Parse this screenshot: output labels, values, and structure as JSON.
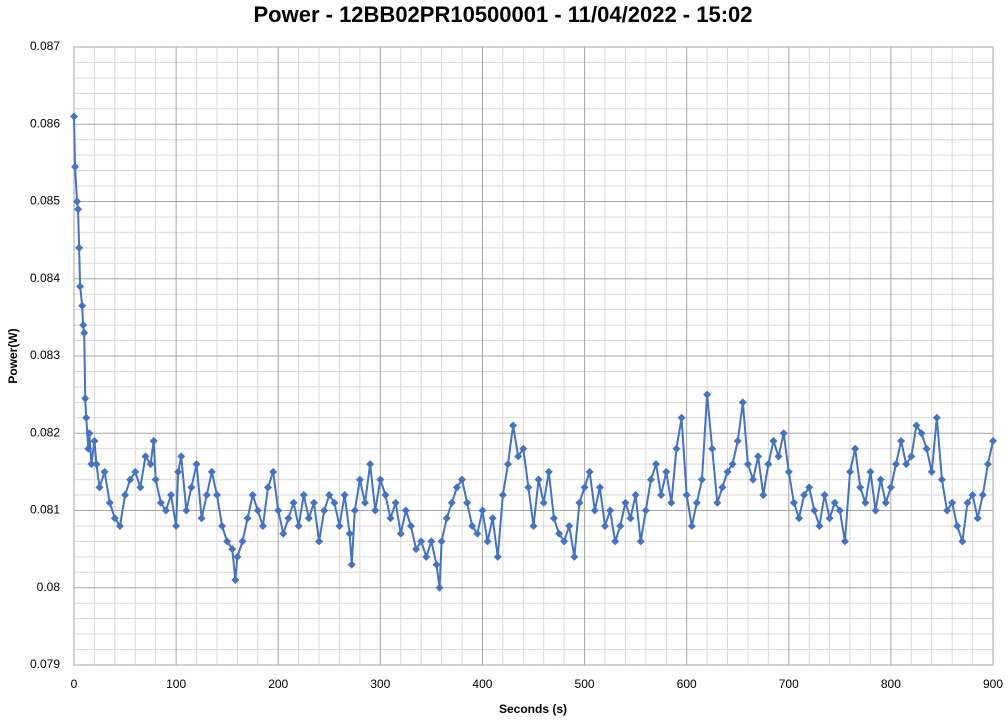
{
  "chart_data": {
    "type": "line",
    "title": "Power - 12BB02PR10500001 - 11/04/2022 - 15:02",
    "xlabel": "Seconds (s)",
    "ylabel": "Power(W)",
    "xlim": [
      0,
      900
    ],
    "xticks": [
      0,
      100,
      200,
      300,
      400,
      500,
      600,
      700,
      800,
      900
    ],
    "ylim": [
      0.079,
      0.087
    ],
    "yticks": [
      0.079,
      0.08,
      0.081,
      0.082,
      0.083,
      0.084,
      0.085,
      0.086,
      0.087
    ],
    "grid": true,
    "minor_grid": {
      "x": 5,
      "y": 5
    },
    "marker": "diamond",
    "x": [
      0,
      1,
      3,
      4,
      5,
      6,
      8,
      9,
      10,
      11,
      12,
      14,
      15,
      17,
      20,
      22,
      25,
      30,
      35,
      40,
      45,
      50,
      55,
      60,
      65,
      70,
      75,
      78,
      80,
      85,
      90,
      95,
      100,
      102,
      105,
      110,
      115,
      120,
      125,
      130,
      135,
      140,
      145,
      150,
      155,
      158,
      160,
      165,
      170,
      175,
      180,
      185,
      190,
      195,
      200,
      205,
      210,
      215,
      220,
      225,
      230,
      235,
      240,
      245,
      250,
      255,
      260,
      265,
      270,
      272,
      275,
      280,
      285,
      290,
      295,
      300,
      305,
      310,
      315,
      320,
      325,
      330,
      335,
      340,
      345,
      350,
      355,
      358,
      360,
      365,
      370,
      375,
      380,
      385,
      390,
      395,
      400,
      405,
      410,
      415,
      420,
      425,
      430,
      435,
      440,
      445,
      450,
      455,
      460,
      465,
      470,
      475,
      480,
      485,
      490,
      495,
      500,
      505,
      510,
      515,
      520,
      525,
      530,
      535,
      540,
      545,
      550,
      555,
      560,
      565,
      570,
      575,
      580,
      585,
      590,
      595,
      600,
      605,
      610,
      615,
      620,
      625,
      630,
      635,
      640,
      645,
      650,
      655,
      660,
      665,
      670,
      675,
      680,
      685,
      690,
      695,
      700,
      705,
      710,
      715,
      720,
      725,
      730,
      735,
      740,
      745,
      750,
      755,
      760,
      765,
      770,
      775,
      780,
      785,
      790,
      795,
      800,
      805,
      810,
      815,
      820,
      825,
      830,
      835,
      840,
      845,
      850,
      855,
      860,
      865,
      870,
      875,
      880,
      885,
      890,
      895,
      900
    ],
    "series": [
      {
        "name": "Power",
        "color": "#4472c4",
        "values": [
          0.0861,
          0.08545,
          0.085,
          0.0849,
          0.0844,
          0.0839,
          0.08365,
          0.0834,
          0.0833,
          0.08245,
          0.0822,
          0.0818,
          0.082,
          0.0816,
          0.0819,
          0.0816,
          0.0813,
          0.0815,
          0.0811,
          0.0809,
          0.0808,
          0.0812,
          0.0814,
          0.0815,
          0.0813,
          0.0817,
          0.0816,
          0.0819,
          0.0814,
          0.0811,
          0.081,
          0.0812,
          0.0808,
          0.0815,
          0.0817,
          0.081,
          0.0813,
          0.0816,
          0.0809,
          0.0812,
          0.0815,
          0.0812,
          0.0808,
          0.0806,
          0.0805,
          0.0801,
          0.0804,
          0.0806,
          0.0809,
          0.0812,
          0.081,
          0.0808,
          0.0813,
          0.0815,
          0.081,
          0.0807,
          0.0809,
          0.0811,
          0.0808,
          0.0812,
          0.0809,
          0.0811,
          0.0806,
          0.081,
          0.0812,
          0.0811,
          0.0808,
          0.0812,
          0.0807,
          0.0803,
          0.081,
          0.0814,
          0.0811,
          0.0816,
          0.081,
          0.0814,
          0.0812,
          0.0809,
          0.0811,
          0.0807,
          0.081,
          0.0808,
          0.0805,
          0.0806,
          0.0804,
          0.0806,
          0.0803,
          0.08,
          0.0806,
          0.0809,
          0.0811,
          0.0813,
          0.0814,
          0.0811,
          0.0808,
          0.0807,
          0.081,
          0.0806,
          0.0809,
          0.0804,
          0.0812,
          0.0816,
          0.0821,
          0.0817,
          0.0818,
          0.0813,
          0.0808,
          0.0814,
          0.0811,
          0.0815,
          0.0809,
          0.0807,
          0.0806,
          0.0808,
          0.0804,
          0.0811,
          0.0813,
          0.0815,
          0.081,
          0.0813,
          0.0808,
          0.081,
          0.0806,
          0.0808,
          0.0811,
          0.0809,
          0.0812,
          0.0806,
          0.081,
          0.0814,
          0.0816,
          0.0812,
          0.0815,
          0.0811,
          0.0818,
          0.0822,
          0.0812,
          0.0808,
          0.0811,
          0.0814,
          0.0825,
          0.0818,
          0.0811,
          0.0813,
          0.0815,
          0.0816,
          0.0819,
          0.0824,
          0.0816,
          0.0814,
          0.0817,
          0.0812,
          0.0816,
          0.0819,
          0.0817,
          0.082,
          0.0815,
          0.0811,
          0.0809,
          0.0812,
          0.0813,
          0.081,
          0.0808,
          0.0812,
          0.0809,
          0.0811,
          0.081,
          0.0806,
          0.0815,
          0.0818,
          0.0813,
          0.0811,
          0.0815,
          0.081,
          0.0814,
          0.0811,
          0.0813,
          0.0816,
          0.0819,
          0.0816,
          0.0817,
          0.0821,
          0.082,
          0.0818,
          0.0815,
          0.0822,
          0.0814,
          0.081,
          0.0811,
          0.0808,
          0.0806,
          0.0811,
          0.0812,
          0.0809,
          0.0812,
          0.0816,
          0.0819
        ]
      }
    ]
  }
}
